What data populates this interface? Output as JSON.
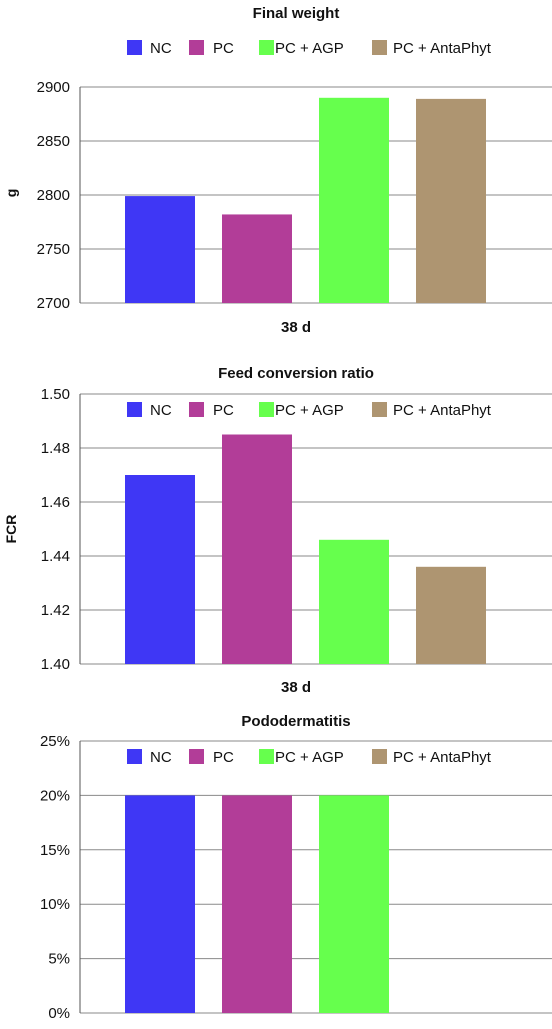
{
  "chart_data": [
    {
      "type": "bar",
      "title": "Final weight",
      "xlabel": "38 d",
      "ylabel": "g",
      "categories": [
        "38 d"
      ],
      "series": [
        {
          "name": "NC",
          "values": [
            2799
          ],
          "color": "#3f37f5"
        },
        {
          "name": "PC",
          "values": [
            2782
          ],
          "color": "#b23d98"
        },
        {
          "name": "PC + AGP",
          "values": [
            2890
          ],
          "color": "#66ff4d"
        },
        {
          "name": "PC + AntaPhyt",
          "values": [
            2889
          ],
          "color": "#ae9571"
        }
      ],
      "ylim": [
        2700,
        2900
      ],
      "yticks": [
        "2700",
        "2750",
        "2800",
        "2850",
        "2900"
      ],
      "grid": true,
      "legend_position": "top"
    },
    {
      "type": "bar",
      "title": "Feed conversion ratio",
      "xlabel": "38 d",
      "ylabel": "FCR",
      "categories": [
        "38 d"
      ],
      "series": [
        {
          "name": "NC",
          "values": [
            1.47
          ],
          "color": "#3f37f5"
        },
        {
          "name": "PC",
          "values": [
            1.485
          ],
          "color": "#b23d98"
        },
        {
          "name": "PC + AGP",
          "values": [
            1.446
          ],
          "color": "#66ff4d"
        },
        {
          "name": "PC + AntaPhyt",
          "values": [
            1.436
          ],
          "color": "#ae9571"
        }
      ],
      "ylim": [
        1.4,
        1.5
      ],
      "yticks": [
        "1.40",
        "1.42",
        "1.44",
        "1.46",
        "1.48",
        "1.50"
      ],
      "grid": true,
      "legend_position": "top"
    },
    {
      "type": "bar",
      "title": "Pododermatitis",
      "xlabel": "",
      "ylabel": "",
      "categories": [
        ""
      ],
      "series": [
        {
          "name": "NC",
          "values": [
            20
          ],
          "color": "#3f37f5"
        },
        {
          "name": "PC",
          "values": [
            20
          ],
          "color": "#b23d98"
        },
        {
          "name": "PC + AGP",
          "values": [
            20
          ],
          "color": "#66ff4d"
        },
        {
          "name": "PC + AntaPhyt",
          "values": [
            0
          ],
          "color": "#ae9571"
        }
      ],
      "ylim": [
        0,
        25
      ],
      "yticks": [
        "0%",
        "5%",
        "10%",
        "15%",
        "20%",
        "25%"
      ],
      "unit": "%",
      "grid": true,
      "legend_position": "top"
    }
  ]
}
